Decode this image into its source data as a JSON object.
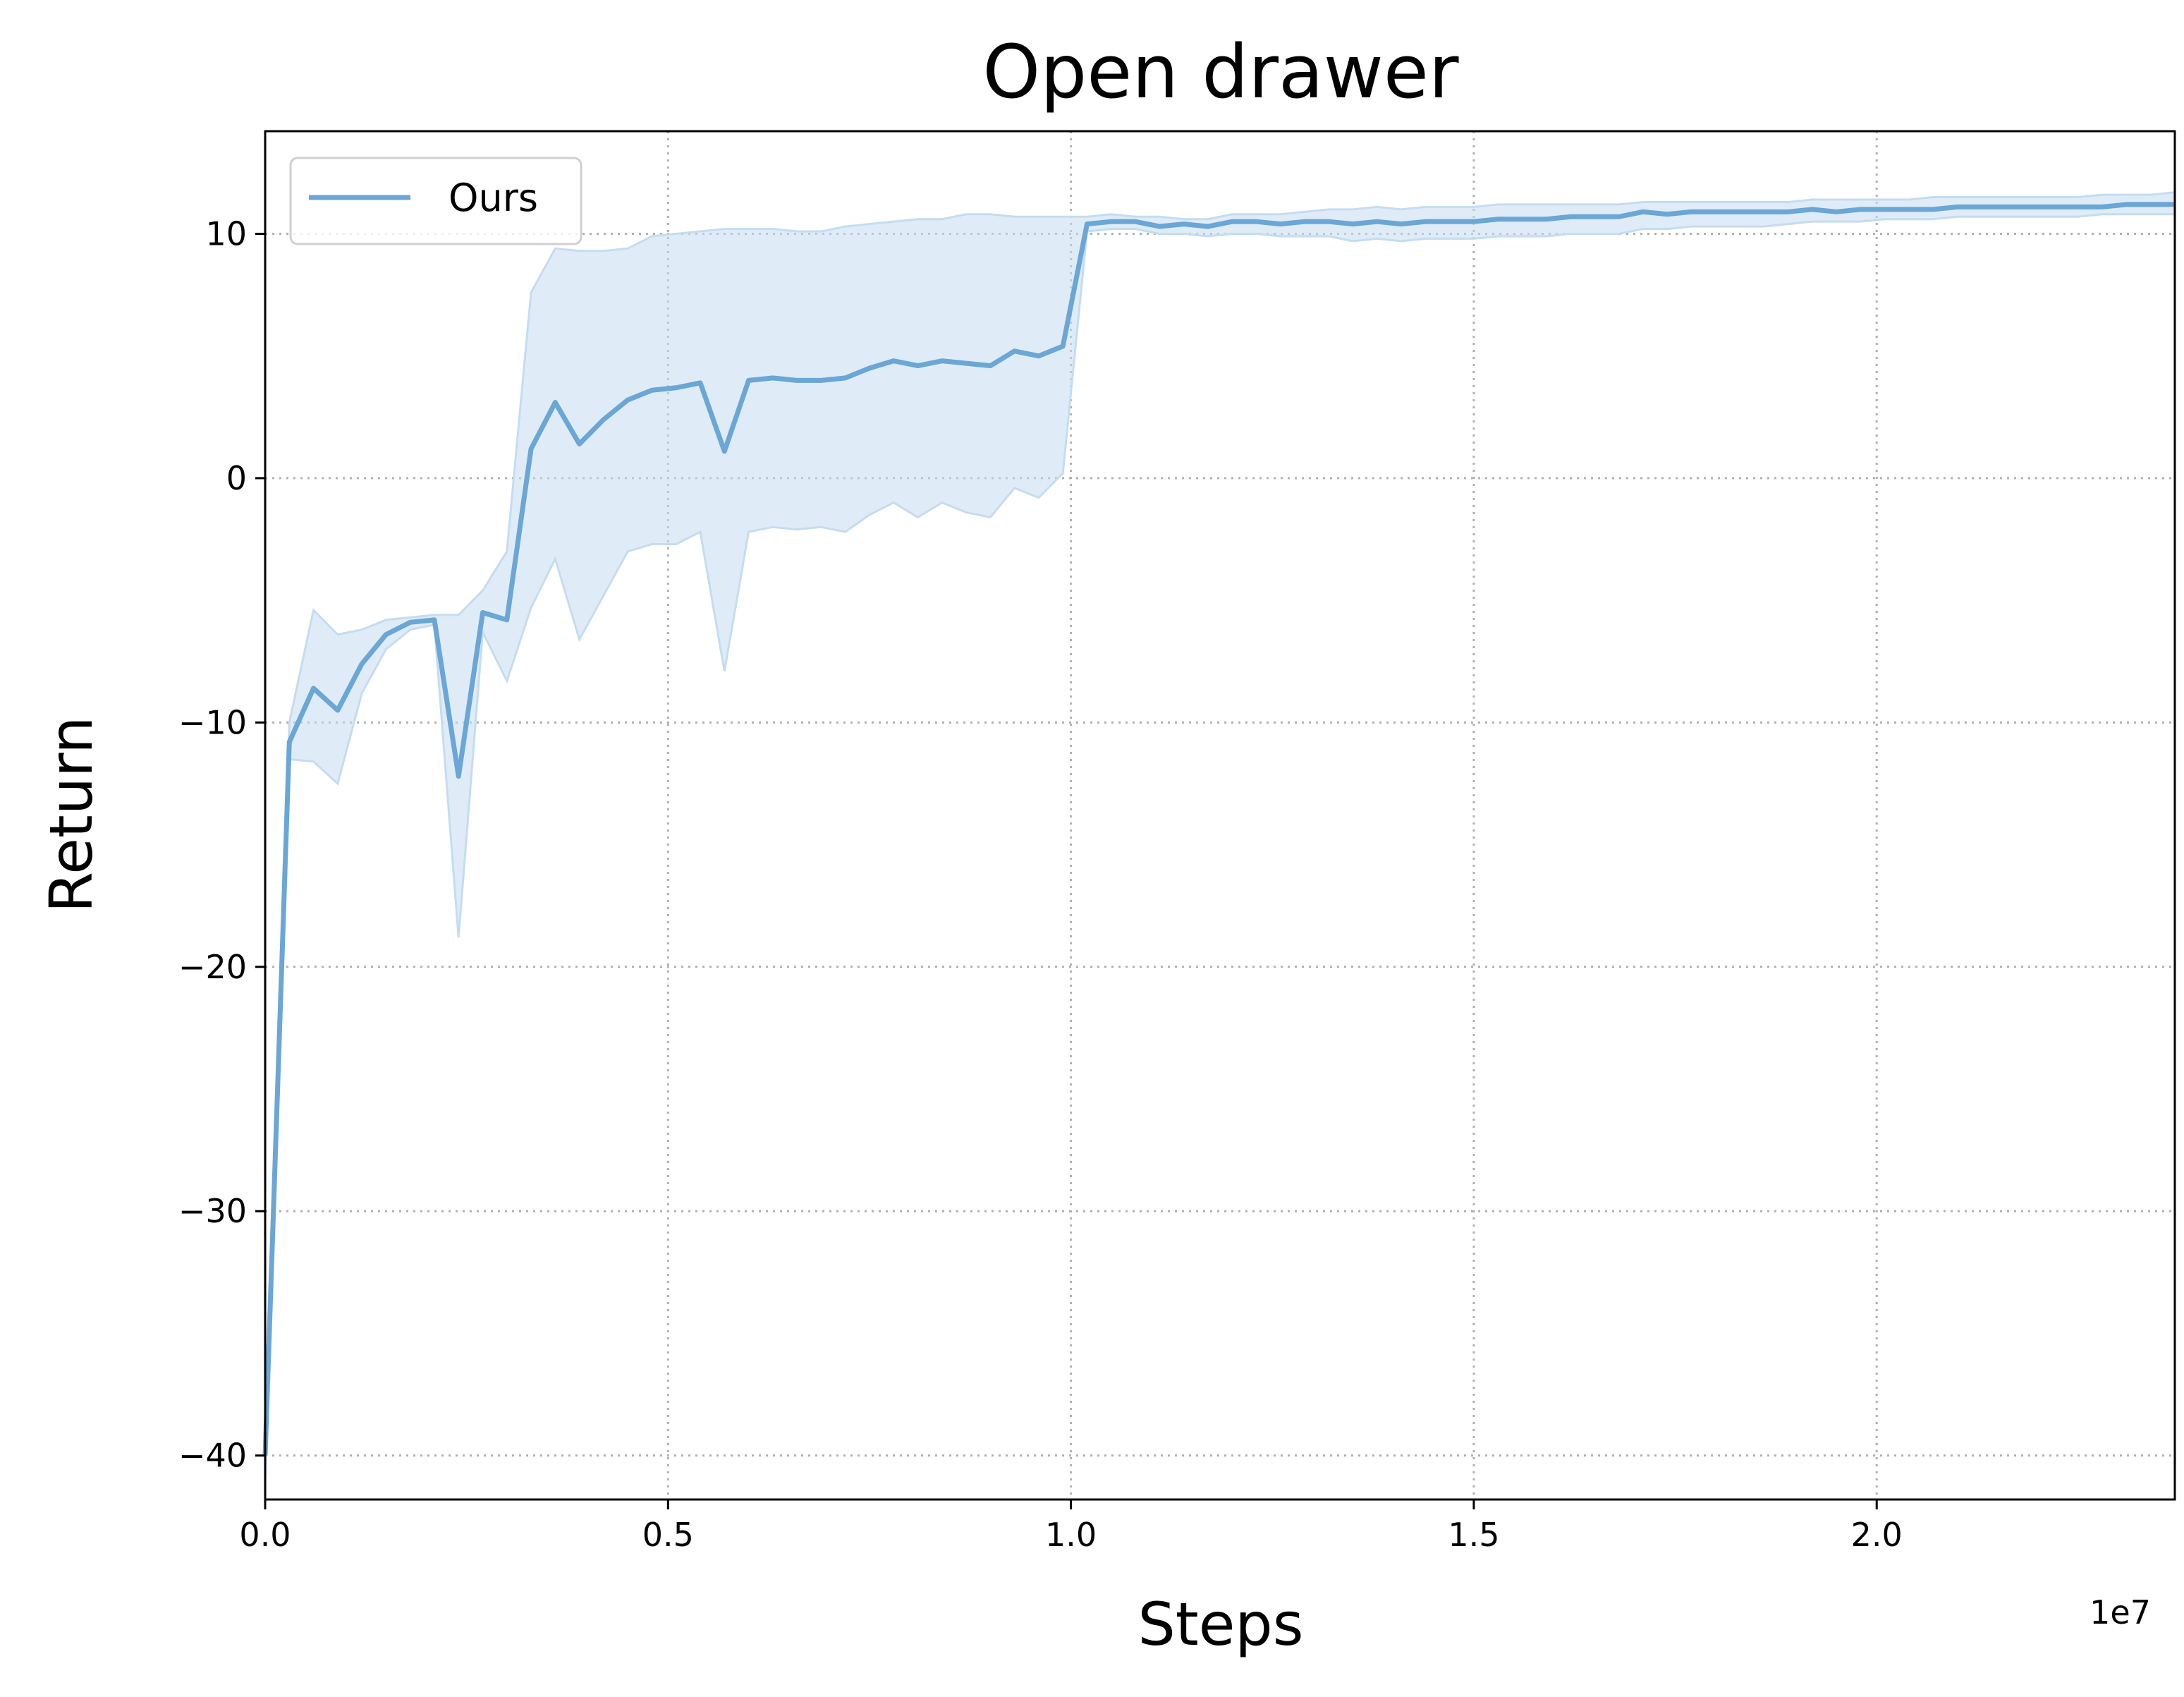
{
  "chart_data": {
    "type": "line",
    "title": "Open drawer",
    "xlabel": "Steps",
    "ylabel": "Return",
    "x_offset_label": "1e7",
    "x_scale": 10000000,
    "xlim": [
      0,
      23700000
    ],
    "ylim": [
      -41.8,
      14.2
    ],
    "xticks": [
      0,
      5000000,
      10000000,
      15000000,
      20000000
    ],
    "xtick_labels": [
      "0.0",
      "0.5",
      "1.0",
      "1.5",
      "2.0"
    ],
    "yticks": [
      -40,
      -30,
      -20,
      -10,
      0,
      10
    ],
    "ytick_labels": [
      "−40",
      "−30",
      "−20",
      "−10",
      "0",
      "10"
    ],
    "grid": true,
    "legend_position": "upper-left",
    "colors": {
      "line": "#6aa6d6",
      "band": "#c5dcf0",
      "grid": "#b0b0b0"
    },
    "series": [
      {
        "name": "Ours",
        "x": [
          0,
          300000,
          600000,
          900000,
          1200000,
          1500000,
          1800000,
          2100000,
          2400000,
          2700000,
          3000000,
          3300000,
          3600000,
          3900000,
          4200000,
          4500000,
          4800000,
          5100000,
          5400000,
          5700000,
          6000000,
          6300000,
          6600000,
          6900000,
          7200000,
          7500000,
          7800000,
          8100000,
          8400000,
          8700000,
          9000000,
          9300000,
          9600000,
          9900000,
          10200000,
          10500000,
          10800000,
          11100000,
          11400000,
          11700000,
          12000000,
          12300000,
          12600000,
          12900000,
          13200000,
          13500000,
          13800000,
          14100000,
          14400000,
          14700000,
          15000000,
          15300000,
          15600000,
          15900000,
          16200000,
          16500000,
          16800000,
          17100000,
          17400000,
          17700000,
          18000000,
          18300000,
          18600000,
          18900000,
          19200000,
          19500000,
          19800000,
          20100000,
          20400000,
          20700000,
          21000000,
          21300000,
          21600000,
          21900000,
          22200000,
          22500000,
          22800000,
          23100000,
          23400000,
          23700000
        ],
        "mean": [
          -40.0,
          -10.8,
          -8.6,
          -9.5,
          -7.6,
          -6.4,
          -5.9,
          -5.8,
          -12.2,
          -5.5,
          -5.8,
          1.2,
          3.1,
          1.4,
          2.4,
          3.2,
          3.6,
          3.7,
          3.9,
          1.1,
          4.0,
          4.1,
          4.0,
          4.0,
          4.1,
          4.5,
          4.8,
          4.6,
          4.8,
          4.7,
          4.6,
          5.2,
          5.0,
          5.4,
          10.4,
          10.5,
          10.5,
          10.3,
          10.4,
          10.3,
          10.5,
          10.5,
          10.4,
          10.5,
          10.5,
          10.4,
          10.5,
          10.4,
          10.5,
          10.5,
          10.5,
          10.6,
          10.6,
          10.6,
          10.7,
          10.7,
          10.7,
          10.9,
          10.8,
          10.9,
          10.9,
          10.9,
          10.9,
          10.9,
          11.0,
          10.9,
          11.0,
          11.0,
          11.0,
          11.0,
          11.1,
          11.1,
          11.1,
          11.1,
          11.1,
          11.1,
          11.1,
          11.2,
          11.2,
          11.2
        ],
        "upper": [
          -39.0,
          -10.0,
          -5.4,
          -6.4,
          -6.2,
          -5.8,
          -5.7,
          -5.6,
          -5.6,
          -4.6,
          -3.0,
          7.6,
          9.4,
          9.3,
          9.3,
          9.4,
          9.9,
          10.0,
          10.1,
          10.2,
          10.2,
          10.2,
          10.1,
          10.1,
          10.3,
          10.4,
          10.5,
          10.6,
          10.6,
          10.8,
          10.8,
          10.7,
          10.7,
          10.7,
          10.7,
          10.8,
          10.7,
          10.7,
          10.6,
          10.6,
          10.8,
          10.8,
          10.8,
          10.9,
          11.0,
          11.0,
          11.1,
          11.0,
          11.1,
          11.1,
          11.1,
          11.2,
          11.2,
          11.2,
          11.2,
          11.2,
          11.2,
          11.3,
          11.3,
          11.3,
          11.3,
          11.3,
          11.3,
          11.3,
          11.4,
          11.4,
          11.4,
          11.4,
          11.4,
          11.5,
          11.5,
          11.5,
          11.5,
          11.5,
          11.5,
          11.5,
          11.6,
          11.6,
          11.6,
          11.7
        ],
        "lower": [
          -41.0,
          -11.5,
          -11.6,
          -12.5,
          -8.8,
          -7.0,
          -6.2,
          -6.0,
          -18.8,
          -6.3,
          -8.3,
          -5.3,
          -3.3,
          -6.6,
          -4.8,
          -3.0,
          -2.7,
          -2.7,
          -2.2,
          -7.9,
          -2.2,
          -2.0,
          -2.1,
          -2.0,
          -2.2,
          -1.5,
          -1.0,
          -1.6,
          -1.0,
          -1.4,
          -1.6,
          -0.4,
          -0.8,
          0.2,
          10.1,
          10.2,
          10.2,
          10.0,
          10.0,
          9.9,
          10.0,
          10.0,
          9.9,
          9.9,
          9.9,
          9.7,
          9.8,
          9.7,
          9.8,
          9.8,
          9.8,
          9.9,
          9.9,
          9.9,
          10.0,
          10.0,
          10.0,
          10.2,
          10.2,
          10.3,
          10.3,
          10.3,
          10.3,
          10.4,
          10.5,
          10.5,
          10.5,
          10.6,
          10.6,
          10.6,
          10.7,
          10.7,
          10.7,
          10.7,
          10.7,
          10.7,
          10.8,
          10.8,
          10.8,
          10.8
        ]
      }
    ]
  }
}
